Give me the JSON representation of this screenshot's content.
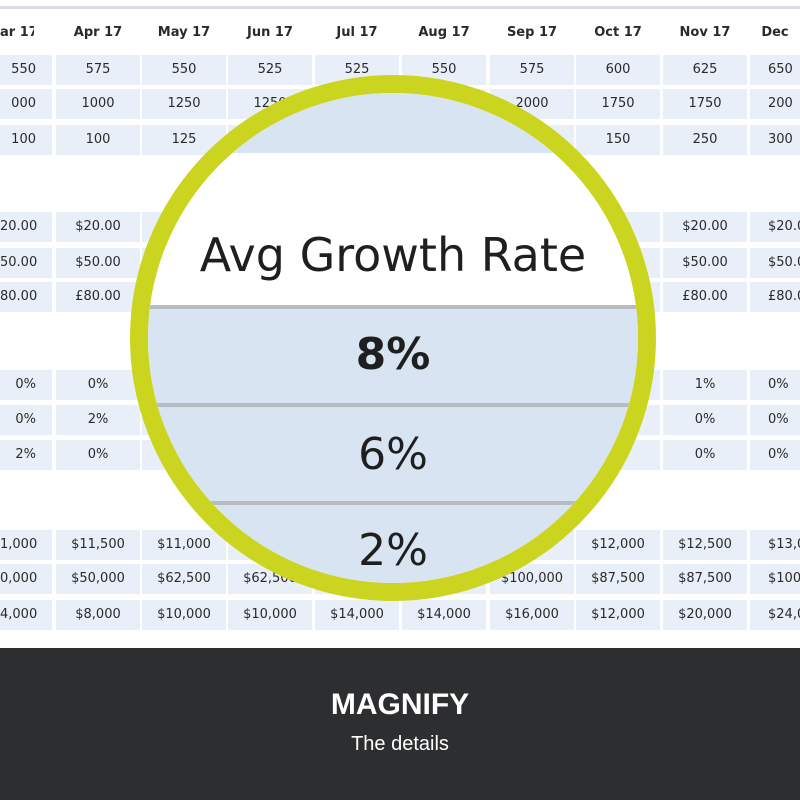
{
  "spreadsheet": {
    "months": [
      "ar 17",
      "Apr 17",
      "May 17",
      "Jun 17",
      "Jul 17",
      "Aug 17",
      "Sep 17",
      "Oct 17",
      "Nov 17",
      "Dec"
    ],
    "rows": [
      [
        "550",
        "575",
        "550",
        "525",
        "525",
        "550",
        "575",
        "600",
        "625",
        "650"
      ],
      [
        "000",
        "1000",
        "1250",
        "1250",
        "",
        "",
        "2000",
        "1750",
        "1750",
        "200"
      ],
      [
        "100",
        "100",
        "125",
        "",
        "",
        "",
        "",
        "150",
        "250",
        "300"
      ],
      [
        "20.00",
        "$20.00",
        "",
        "",
        "",
        "",
        "",
        "",
        "$20.00",
        "$20.0"
      ],
      [
        "50.00",
        "$50.00",
        "",
        "",
        "",
        "",
        "",
        "",
        "$50.00",
        "$50.0"
      ],
      [
        "80.00",
        "£80.00",
        "",
        "",
        "",
        "",
        "",
        "",
        "£80.00",
        "£80.0"
      ],
      [
        "0%",
        "0%",
        "",
        "",
        "",
        "",
        "",
        "",
        "1%",
        "0%"
      ],
      [
        "0%",
        "2%",
        "",
        "",
        "",
        "",
        "",
        "",
        "0%",
        "0%"
      ],
      [
        "2%",
        "0%",
        "",
        "",
        "",
        "",
        "",
        "",
        "0%",
        "0%"
      ],
      [
        "1,000",
        "$11,500",
        "$11,000",
        "",
        "",
        "",
        "",
        "$12,000",
        "$12,500",
        "$13,0"
      ],
      [
        "0,000",
        "$50,000",
        "$62,500",
        "$62,500",
        "",
        "",
        "$100,000",
        "$87,500",
        "$87,500",
        "$100,0"
      ],
      [
        "4,000",
        "$8,000",
        "$10,000",
        "$10,000",
        "$14,000",
        "$14,000",
        "$16,000",
        "$12,000",
        "$20,000",
        "$24,0"
      ]
    ]
  },
  "magnifier": {
    "header": "Avg Growth Rate",
    "values": [
      "8%",
      "6%",
      "2%"
    ]
  },
  "footer": {
    "title": "MAGNIFY",
    "subtitle": "The details"
  },
  "colors": {
    "lens_ring": "#cbd51f",
    "cell_fill": "#e9eff8",
    "lens_band": "#d9e4f2",
    "footer_bg": "#2d2e30"
  }
}
